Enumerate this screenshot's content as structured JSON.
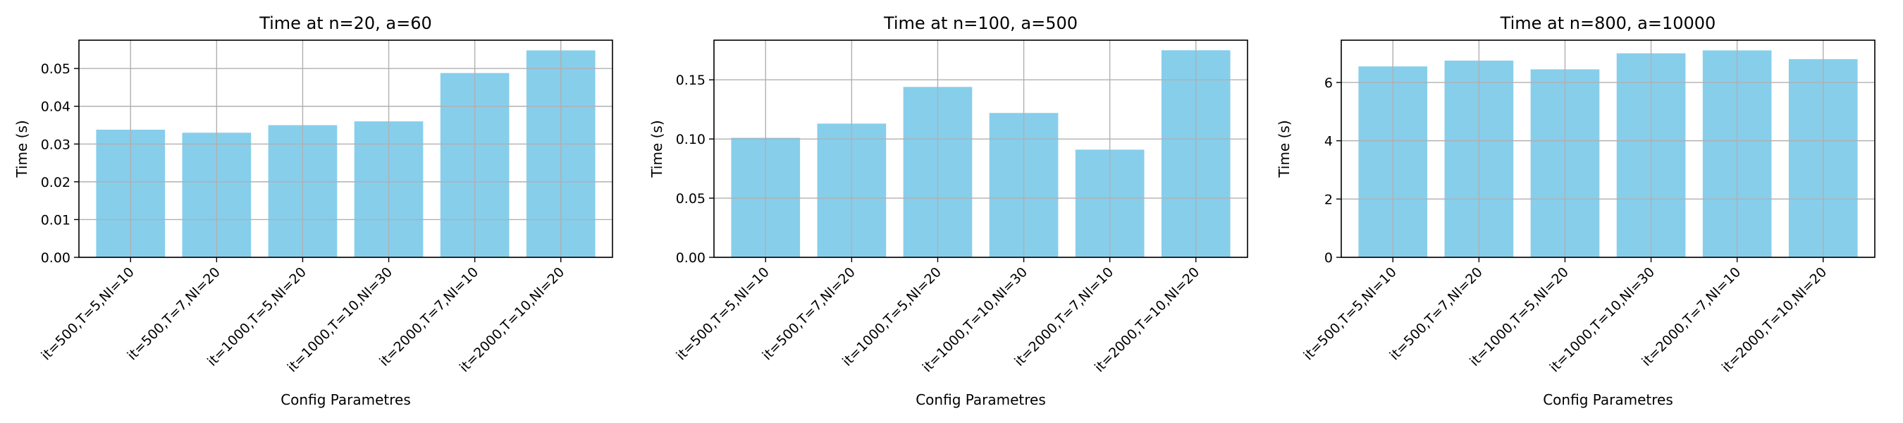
{
  "chart_data": [
    {
      "type": "bar",
      "title": "Time at n=20, a=60",
      "xlabel": "Config Parametres",
      "ylabel": "Time (s)",
      "categories": [
        "it=500,T=5,NI=10",
        "it=500,T=7,NI=20",
        "it=1000,T=5,NI=20",
        "it=1000,T=10,NI=30",
        "it=2000,T=7,NI=10",
        "it=2000,T=10,NI=20"
      ],
      "values": [
        0.0338,
        0.033,
        0.035,
        0.036,
        0.0488,
        0.0548
      ],
      "ylim": [
        0,
        0.0575
      ],
      "yticks": [
        "0.00",
        "0.01",
        "0.02",
        "0.03",
        "0.04",
        "0.05"
      ],
      "ytick_values": [
        0,
        0.01,
        0.02,
        0.03,
        0.04,
        0.05
      ],
      "grid": true,
      "color": "#87ceeb"
    },
    {
      "type": "bar",
      "title": "Time at n=100, a=500",
      "xlabel": "Config Parametres",
      "ylabel": "Time (s)",
      "categories": [
        "it=500,T=5,NI=10",
        "it=500,T=7,NI=20",
        "it=1000,T=5,NI=20",
        "it=1000,T=10,NI=30",
        "it=2000,T=7,NI=10",
        "it=2000,T=10,NI=20"
      ],
      "values": [
        0.101,
        0.113,
        0.144,
        0.122,
        0.091,
        0.175
      ],
      "ylim": [
        0,
        0.1835
      ],
      "yticks": [
        "0.00",
        "0.05",
        "0.10",
        "0.15"
      ],
      "ytick_values": [
        0,
        0.05,
        0.1,
        0.15
      ],
      "grid": true,
      "color": "#87ceeb"
    },
    {
      "type": "bar",
      "title": "Time at n=800, a=10000",
      "xlabel": "Config Parametres",
      "ylabel": "Time (s)",
      "categories": [
        "it=500,T=5,NI=10",
        "it=500,T=7,NI=20",
        "it=1000,T=5,NI=20",
        "it=1000,T=10,NI=30",
        "it=2000,T=7,NI=10",
        "it=2000,T=10,NI=20"
      ],
      "values": [
        6.55,
        6.75,
        6.45,
        7.0,
        7.1,
        6.8
      ],
      "ylim": [
        0,
        7.45
      ],
      "yticks": [
        "0",
        "2",
        "4",
        "6"
      ],
      "ytick_values": [
        0,
        2,
        4,
        6
      ],
      "grid": true,
      "color": "#87ceeb"
    }
  ]
}
